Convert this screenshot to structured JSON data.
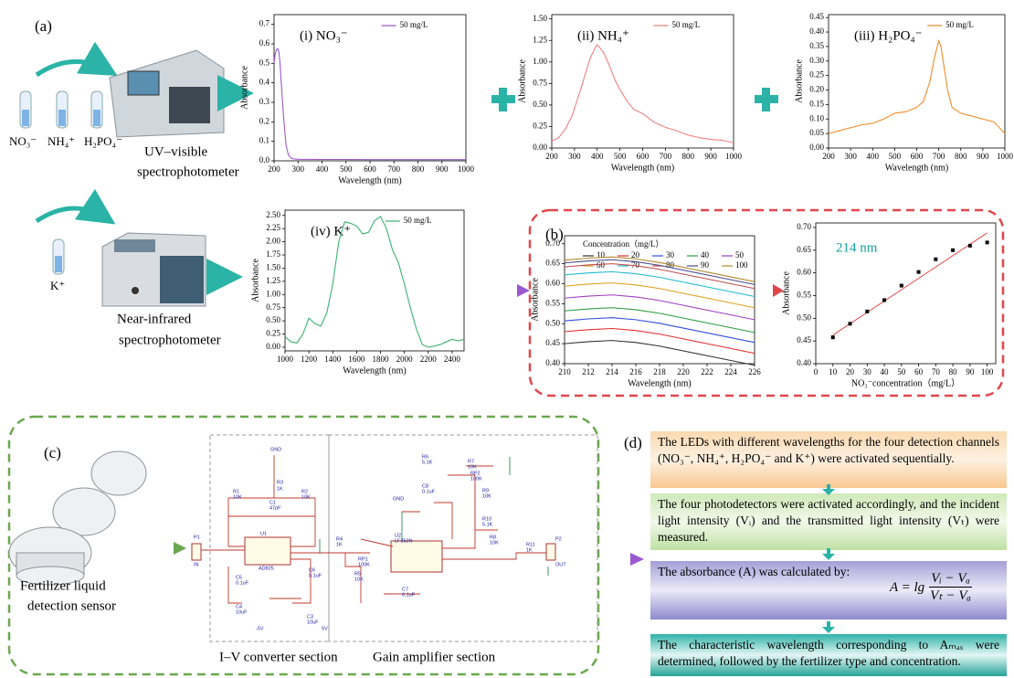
{
  "panel_labels": [
    "(a)",
    "(b)",
    "(c)",
    "(d)"
  ],
  "reagents": [
    "NO₃⁻",
    "NH₄⁺",
    "H₂PO₄⁻",
    "K⁺"
  ],
  "uv_label": [
    "UV–visible",
    "spectrophotometer"
  ],
  "nir_label": [
    "Near-infrared",
    "spectrophotometer"
  ],
  "sensor_label": [
    "Fertilizer liquid",
    "detection sensor"
  ],
  "circuit": {
    "sections": [
      "I–V converter section",
      "Gain amplifier section"
    ],
    "labels": [
      "GND",
      "R3",
      "1K",
      "R1",
      "10K",
      "R2",
      "10K",
      "C1",
      "47pF",
      "U1",
      "AD825",
      "P1",
      "IN",
      "C5",
      "0.1uF",
      "C4",
      "10uF",
      "C6",
      "0.1uF",
      "C3",
      "10uF",
      "-5V",
      "5V",
      "R4",
      "1K",
      "RP1",
      "100K",
      "R5",
      "10K",
      "U2",
      "LF353N",
      "C8",
      "0.1uF",
      "R6",
      "5.1K",
      "R7",
      "10K",
      "RP2",
      "100K",
      "R9",
      "10K",
      "R10",
      "5.1K",
      "R8",
      "10K",
      "R11",
      "1K",
      "C7",
      "0.1uF",
      "P2",
      "OUT",
      "GND"
    ]
  },
  "flowchart": {
    "steps": [
      "The LEDs with different wavelengths for the four detection channels (NO₃⁻, NH₄⁺, H₂PO₄⁻ and K⁺) were activated sequentially.",
      "The four photodetectors were activated accordingly, and the incident light intensity (Vᵢ) and the transmitted light intensity (Vₜ) were measured.",
      "The characteristic  wavelength corresponding to Aₘₐₓ were determined, followed by the fertilizer type and concentration."
    ],
    "formula": {
      "text": "The absorbance (A) was calculated by:",
      "lhs": "A = lg",
      "numerator": "Vᵢ − Vₐ",
      "denominator": "Vₜ − Vₐ"
    }
  },
  "chart_data": [
    {
      "type": "line",
      "title": "(i)  NO₃⁻",
      "xlabel": "Wavelength (nm)",
      "ylabel": "Absorbance",
      "x": [
        200,
        205,
        210,
        215,
        220,
        225,
        230,
        240,
        250,
        260,
        270,
        280,
        300,
        400,
        500,
        600,
        700,
        800,
        900,
        1000
      ],
      "xlim": [
        200,
        1000
      ],
      "xticks": [
        200,
        300,
        400,
        500,
        600,
        700,
        800,
        900,
        1000
      ],
      "ylim": [
        0,
        0.75
      ],
      "yticks": [
        {
          "value": 0,
          "label": "0.0"
        },
        0.1,
        0.2,
        0.3,
        0.4,
        0.5,
        0.6,
        0.7
      ],
      "series": [
        {
          "name": "50 mg/L",
          "color": "#9b59d0",
          "values": [
            0.5,
            0.55,
            0.57,
            0.575,
            0.56,
            0.5,
            0.4,
            0.22,
            0.08,
            0.03,
            0.015,
            0.01,
            0.008,
            0.007,
            0.007,
            0.006,
            0.006,
            0.006,
            0.006,
            0.006
          ]
        }
      ]
    },
    {
      "type": "line",
      "title": "(ii)  NH₄⁺",
      "xlabel": "Wavelength (nm)",
      "ylabel": "Absorbance",
      "x": [
        200,
        230,
        260,
        290,
        320,
        350,
        370,
        390,
        400,
        410,
        430,
        450,
        480,
        500,
        530,
        560,
        600,
        650,
        700,
        750,
        800,
        850,
        900,
        950,
        1000
      ],
      "xlim": [
        200,
        1000
      ],
      "xticks": [
        200,
        300,
        400,
        500,
        600,
        700,
        800,
        900,
        1000
      ],
      "ylim": [
        0,
        1.55
      ],
      "yticks": [
        {
          "value": 0,
          "label": "0.00"
        },
        0.25,
        {
          "value": 0.5,
          "label": "0.50"
        },
        0.75,
        {
          "value": 1,
          "label": "1.00"
        },
        1.25,
        {
          "value": 1.5,
          "label": "1.50"
        }
      ],
      "series": [
        {
          "name": "50 mg/L",
          "color": "#f08080",
          "values": [
            0.08,
            0.12,
            0.22,
            0.38,
            0.62,
            0.88,
            1.05,
            1.16,
            1.2,
            1.17,
            1.1,
            0.98,
            0.78,
            0.68,
            0.55,
            0.45,
            0.4,
            0.3,
            0.24,
            0.2,
            0.15,
            0.12,
            0.1,
            0.09,
            0.06
          ]
        }
      ]
    },
    {
      "type": "line",
      "title": "(iii)  H₂PO₄⁻",
      "xlabel": "Wavelength (nm)",
      "ylabel": "Absorbance",
      "x": [
        200,
        250,
        300,
        350,
        400,
        450,
        500,
        550,
        600,
        630,
        660,
        680,
        700,
        710,
        720,
        740,
        760,
        800,
        850,
        900,
        950,
        1000
      ],
      "xlim": [
        200,
        1000
      ],
      "xticks": [
        200,
        300,
        400,
        500,
        600,
        700,
        800,
        900,
        1000
      ],
      "ylim": [
        0,
        0.46
      ],
      "yticks": [
        {
          "value": 0,
          "label": "0.00"
        },
        0.05,
        {
          "value": 0.1,
          "label": "0.10"
        },
        0.15,
        {
          "value": 0.2,
          "label": "0.20"
        },
        0.25,
        {
          "value": 0.3,
          "label": "0.30"
        },
        0.35,
        {
          "value": 0.4,
          "label": "0.40"
        },
        0.45
      ],
      "series": [
        {
          "name": "50 mg/L",
          "color": "#f08c28",
          "values": [
            0.05,
            0.06,
            0.07,
            0.08,
            0.085,
            0.1,
            0.12,
            0.125,
            0.14,
            0.16,
            0.23,
            0.31,
            0.37,
            0.35,
            0.3,
            0.2,
            0.14,
            0.12,
            0.11,
            0.1,
            0.09,
            0.05
          ]
        }
      ]
    },
    {
      "type": "line",
      "title": "(iv)  K⁺",
      "xlabel": "Wavelength (nm)",
      "ylabel": "Absorbance",
      "x": [
        1000,
        1050,
        1100,
        1150,
        1200,
        1250,
        1300,
        1350,
        1400,
        1450,
        1500,
        1550,
        1600,
        1650,
        1700,
        1750,
        1800,
        1850,
        1900,
        1950,
        2000,
        2050,
        2100,
        2150,
        2200,
        2250,
        2300,
        2350,
        2400,
        2450,
        2500
      ],
      "xlim": [
        1000,
        2500
      ],
      "xticks": [
        1000,
        1200,
        1400,
        1600,
        1800,
        2000,
        2200,
        2400
      ],
      "ylim": [
        -0.07,
        2.6
      ],
      "yticks": [
        {
          "value": 0,
          "label": "0.00"
        },
        0.25,
        {
          "value": 0.5,
          "label": "0.50"
        },
        0.75,
        {
          "value": 1,
          "label": "1.00"
        },
        1.25,
        {
          "value": 1.5,
          "label": "1.50"
        },
        1.75,
        {
          "value": 2,
          "label": "2.00"
        },
        2.25,
        {
          "value": 2.5,
          "label": "2.50"
        }
      ],
      "series": [
        {
          "name": "50 mg/L",
          "color": "#3cb371",
          "values": [
            0.2,
            0.1,
            0.08,
            0.25,
            0.55,
            0.45,
            0.4,
            0.65,
            1.2,
            2.0,
            2.38,
            2.35,
            2.3,
            2.15,
            2.18,
            2.4,
            2.48,
            2.25,
            1.85,
            1.6,
            1.2,
            0.75,
            0.35,
            0.05,
            0.0,
            0.02,
            0.05,
            0.1,
            0.15,
            0.12,
            0.15
          ]
        }
      ]
    },
    {
      "type": "line",
      "xlabel": "Wavelength (nm)",
      "ylabel": "Absorbance",
      "legend_title": "Concentration（mg/L）",
      "x": [
        210,
        212,
        214,
        216,
        218,
        220,
        222,
        224,
        226
      ],
      "xlim": [
        210,
        226
      ],
      "xticks": [
        210,
        212,
        214,
        216,
        218,
        220,
        222,
        224,
        226
      ],
      "ylim": [
        0.4,
        0.72
      ],
      "yticks": [
        {
          "value": 0.4,
          "label": "0.40"
        },
        0.45,
        {
          "value": 0.5,
          "label": "0.50"
        },
        0.55,
        {
          "value": 0.6,
          "label": "0.60"
        },
        0.65,
        {
          "value": 0.7,
          "label": "0.70"
        }
      ],
      "series": [
        {
          "name": "10",
          "color": "#333333",
          "values": [
            0.45,
            0.455,
            0.458,
            0.453,
            0.444,
            0.432,
            0.42,
            0.408,
            0.396
          ]
        },
        {
          "name": "20",
          "color": "#e0302f",
          "values": [
            0.48,
            0.485,
            0.488,
            0.483,
            0.474,
            0.462,
            0.45,
            0.438,
            0.426
          ]
        },
        {
          "name": "30",
          "color": "#2f4fd8",
          "values": [
            0.507,
            0.512,
            0.515,
            0.51,
            0.501,
            0.489,
            0.477,
            0.465,
            0.453
          ]
        },
        {
          "name": "40",
          "color": "#2e9e3e",
          "values": [
            0.532,
            0.537,
            0.54,
            0.535,
            0.526,
            0.514,
            0.502,
            0.49,
            0.478
          ]
        },
        {
          "name": "50",
          "color": "#a040c0",
          "values": [
            0.564,
            0.569,
            0.572,
            0.567,
            0.558,
            0.546,
            0.534,
            0.522,
            0.51
          ]
        },
        {
          "name": "60",
          "color": "#e0a020",
          "values": [
            0.594,
            0.599,
            0.602,
            0.597,
            0.588,
            0.576,
            0.564,
            0.552,
            0.54
          ]
        },
        {
          "name": "70",
          "color": "#20b8d0",
          "values": [
            0.622,
            0.627,
            0.63,
            0.625,
            0.616,
            0.604,
            0.592,
            0.58,
            0.568
          ]
        },
        {
          "name": "80",
          "color": "#c0504d",
          "values": [
            0.642,
            0.647,
            0.65,
            0.645,
            0.636,
            0.624,
            0.612,
            0.6,
            0.588
          ]
        },
        {
          "name": "90",
          "color": "#4a4a8a",
          "values": [
            0.652,
            0.657,
            0.66,
            0.655,
            0.646,
            0.634,
            0.622,
            0.61,
            0.598
          ]
        },
        {
          "name": "100",
          "color": "#b08a30",
          "values": [
            0.659,
            0.664,
            0.667,
            0.662,
            0.653,
            0.641,
            0.629,
            0.617,
            0.605
          ]
        }
      ]
    },
    {
      "type": "scatter",
      "xlabel": "NO₃⁻concentration（mg/L）",
      "ylabel": "Absorbance",
      "annotation": "214 nm",
      "x": [
        10,
        20,
        30,
        40,
        50,
        60,
        70,
        80,
        90,
        100
      ],
      "xlim": [
        0,
        105
      ],
      "xticks": [
        0,
        10,
        20,
        30,
        40,
        50,
        60,
        70,
        80,
        90,
        100
      ],
      "ylim": [
        0.4,
        0.71
      ],
      "yticks": [
        {
          "value": 0.4,
          "label": "0.40"
        },
        0.45,
        {
          "value": 0.5,
          "label": "0.50"
        },
        0.55,
        {
          "value": 0.6,
          "label": "0.60"
        },
        0.65,
        {
          "value": 0.7,
          "label": "0.70"
        }
      ],
      "series": [
        {
          "color": "#000000",
          "values": [
            0.458,
            0.488,
            0.515,
            0.54,
            0.572,
            0.602,
            0.63,
            0.65,
            0.66,
            0.667
          ]
        }
      ],
      "fit": {
        "color": "#e0474c",
        "x": [
          10,
          100
        ],
        "y": [
          0.463,
          0.688
        ]
      }
    }
  ]
}
